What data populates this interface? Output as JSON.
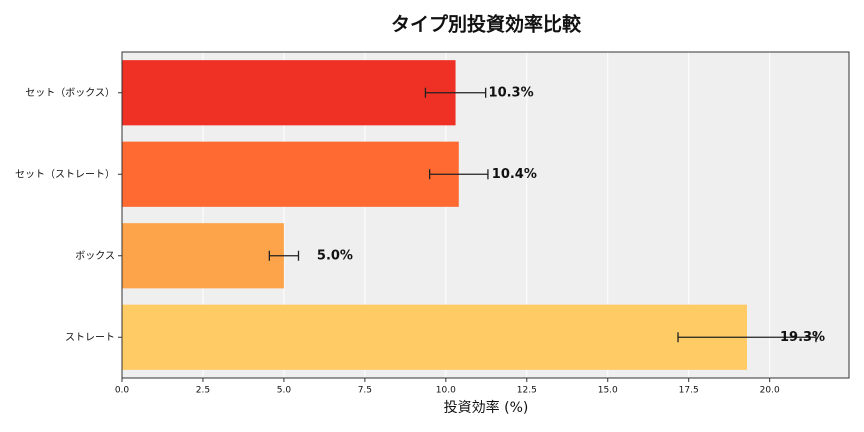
{
  "chart_data": {
    "type": "barh",
    "title": "タイプ別投資効率比較",
    "xlabel": "投資効率 (%)",
    "categories": [
      "セット（ボックス）",
      "セット（ストレート）",
      "ボックス",
      "ストレート"
    ],
    "values": [
      10.3,
      10.4,
      5.0,
      19.3
    ],
    "errors": [
      0.93,
      0.9,
      0.45,
      2.13
    ],
    "value_labels": [
      "10.3%",
      "10.4%",
      "5.0%",
      "19.3%"
    ],
    "colors": [
      "#ee3124",
      "#ff6a33",
      "#fda44a",
      "#fecb65"
    ],
    "xlim": [
      0,
      22.45
    ],
    "xticks": [
      {
        "value": 0,
        "label": "0.0"
      },
      2.5,
      {
        "value": 5,
        "label": "5.0"
      },
      7.5,
      {
        "value": 10,
        "label": "10.0"
      },
      12.5,
      {
        "value": 15,
        "label": "15.0"
      },
      17.5,
      {
        "value": 20,
        "label": "20.0"
      }
    ],
    "grid": true
  }
}
